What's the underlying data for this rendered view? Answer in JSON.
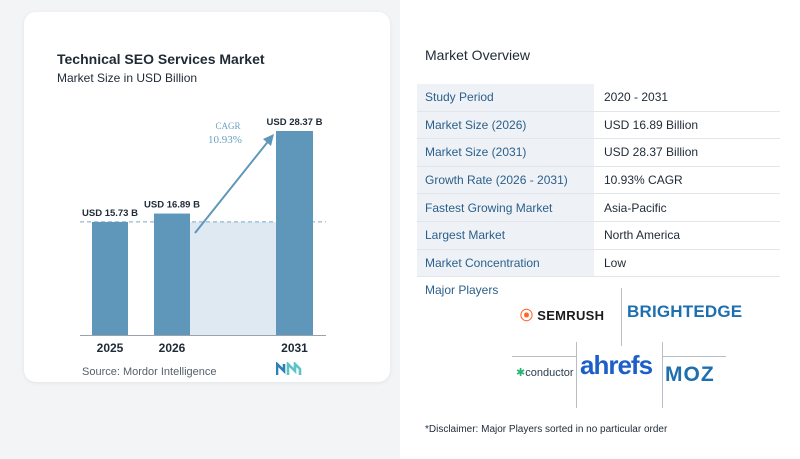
{
  "chart_data": {
    "type": "bar",
    "title": "Technical SEO Services Market",
    "subtitle": "Market Size in USD Billion",
    "categories": [
      "2025",
      "2026",
      "2031"
    ],
    "values": [
      15.73,
      16.89,
      28.37
    ],
    "value_labels": [
      "USD 15.73 B",
      "USD 16.89 B",
      "USD 28.37 B"
    ],
    "annotation": {
      "label": "CAGR",
      "value": "10.93%"
    },
    "colors": {
      "bar": "#5f97ba",
      "shade": "#dfe9f2",
      "arrow": "#5f97ba",
      "cagr_text": "#6aa0c3"
    },
    "ylim": [
      0,
      30
    ]
  },
  "source": "Source:  Mordor Intelligence",
  "overview": {
    "title": "Market Overview",
    "rows": [
      {
        "label": "Study Period",
        "value": "2020 - 2031"
      },
      {
        "label": "Market Size (2026)",
        "value": "USD 16.89 Billion"
      },
      {
        "label": "Market Size (2031)",
        "value": "USD 28.37 Billion"
      },
      {
        "label": "Growth Rate (2026 - 2031)",
        "value": "10.93% CAGR"
      },
      {
        "label": "Fastest Growing Market",
        "value": "Asia-Pacific"
      },
      {
        "label": "Largest Market",
        "value": "North America"
      },
      {
        "label": "Market Concentration",
        "value": "Low"
      }
    ]
  },
  "players": {
    "title": "Major Players",
    "logos": [
      "SEMRUSH",
      "BRIGHTEDGE",
      "conductor",
      "ahrefs",
      "MOZ"
    ]
  },
  "disclaimer": "*Disclaimer: Major Players sorted in no particular order"
}
